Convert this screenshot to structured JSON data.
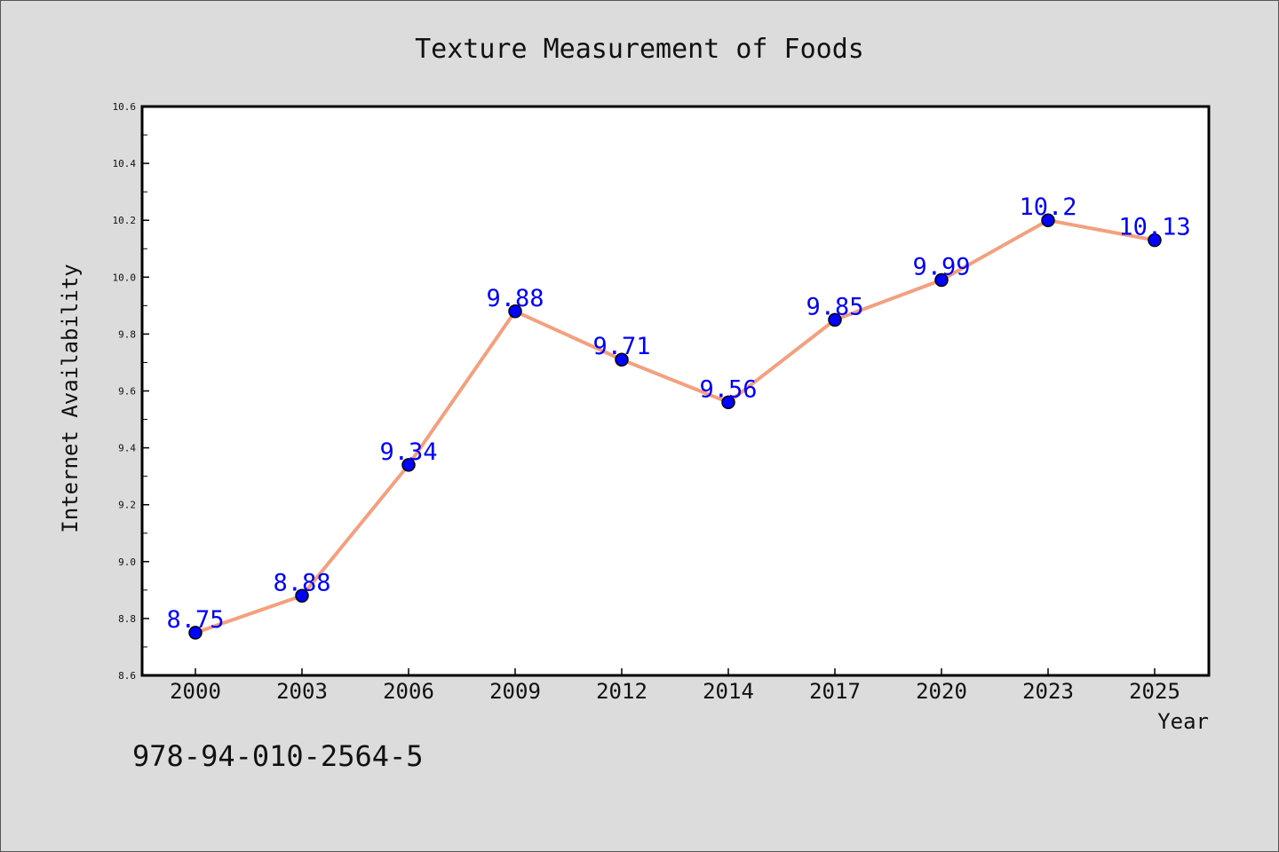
{
  "chart_data": {
    "type": "line",
    "title": "Texture Measurement of Foods",
    "xlabel": "Year",
    "ylabel": "Internet Availability",
    "categories": [
      "2000",
      "2003",
      "2006",
      "2009",
      "2012",
      "2014",
      "2017",
      "2020",
      "2023",
      "2025"
    ],
    "series": [
      {
        "values": [
          8.75,
          8.88,
          9.34,
          9.88,
          9.71,
          9.56,
          9.85,
          9.99,
          10.2,
          10.13
        ],
        "data_labels": [
          "8.75",
          "8.88",
          "9.34",
          "9.88",
          "9.71",
          "9.56",
          "9.85",
          "9.99",
          "10.2",
          "10.13"
        ]
      }
    ],
    "ylim": [
      8.6,
      10.6
    ],
    "yticks": [
      8.6,
      8.8,
      9.0,
      9.2,
      9.4,
      9.6,
      9.8,
      10.0,
      10.2,
      10.4,
      10.6
    ],
    "ytick_labels": [
      "8.6",
      "8.8",
      "9.0",
      "9.2",
      "9.4",
      "9.6",
      "9.8",
      "10.0",
      "10.2",
      "10.4",
      "10.6"
    ],
    "grid": false,
    "colors": {
      "line": "#f4a07e",
      "marker": "#0000ff",
      "label": "#0000ff",
      "background": "#dcdcdc",
      "plot_area": "#ffffff"
    }
  },
  "annotation": "978-94-010-2564-5"
}
